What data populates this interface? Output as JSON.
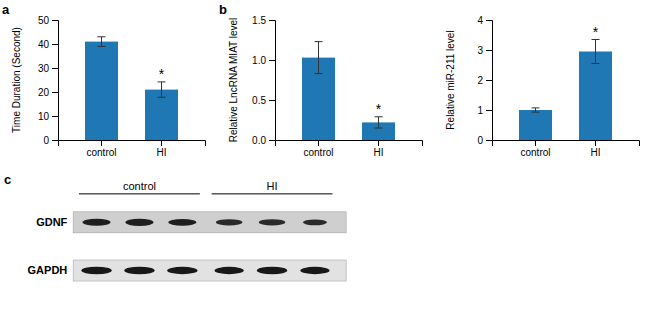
{
  "chart_data": [
    {
      "type": "bar",
      "title": "a",
      "categories": [
        "control",
        "HI"
      ],
      "values": [
        41,
        21
      ],
      "errors": [
        2.0,
        3.2
      ],
      "ylabel": "Time Duration (Second)",
      "ylim": [
        0,
        50
      ],
      "yticks": [
        0,
        10,
        20,
        30,
        40,
        50
      ],
      "annotations": [
        {
          "text": "*",
          "category": "HI"
        }
      ]
    },
    {
      "type": "bar",
      "title": "b",
      "categories": [
        "control",
        "HI"
      ],
      "values": [
        1.03,
        0.22
      ],
      "errors": [
        0.2,
        0.07
      ],
      "ylabel": "Relative LncRNA MIAT level",
      "ylim": [
        0,
        1.5
      ],
      "yticks": [
        {
          "value": 0.0,
          "label": "0.0"
        },
        0.5,
        {
          "value": 1.0,
          "label": "1.0"
        },
        1.5
      ],
      "annotations": [
        {
          "text": "*",
          "category": "HI"
        }
      ]
    },
    {
      "type": "bar",
      "categories": [
        "control",
        "HI"
      ],
      "values": [
        1.0,
        2.95
      ],
      "errors": [
        0.07,
        0.4
      ],
      "ylabel": "Relative miR-211 level",
      "ylim": [
        0,
        4
      ],
      "yticks": [
        0,
        1,
        2,
        3,
        4
      ],
      "annotations": [
        {
          "text": "*",
          "category": "HI"
        }
      ]
    },
    {
      "type": "blot",
      "title": "c",
      "categories": [
        "control",
        "HI"
      ],
      "series": [
        {
          "name": "GDNF",
          "colors": [
            "#1e1e1e",
            "#2a2a2a"
          ],
          "widths": [
            [
              0.72,
              0.72,
              0.72
            ],
            [
              0.68,
              0.68,
              0.62
            ]
          ],
          "heights": [
            [
              0.48,
              0.5,
              0.46
            ],
            [
              0.44,
              0.44,
              0.4
            ]
          ]
        },
        {
          "name": "GAPDH",
          "color": "#181818",
          "widths": [
            [
              0.78,
              0.78,
              0.78
            ],
            [
              0.75,
              0.78,
              0.75
            ]
          ],
          "heights": [
            [
              0.52,
              0.52,
              0.5
            ],
            [
              0.5,
              0.52,
              0.5
            ]
          ]
        }
      ]
    }
  ]
}
